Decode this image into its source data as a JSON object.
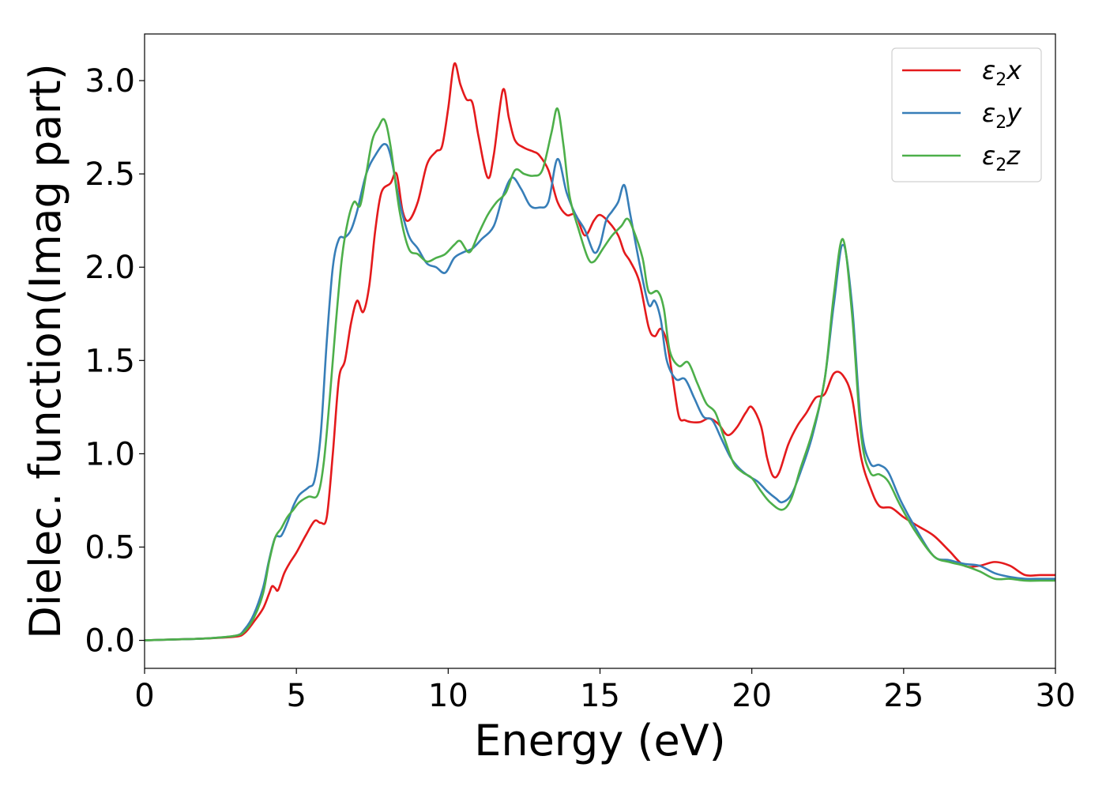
{
  "chart_data": {
    "type": "line",
    "title": "",
    "xlabel": "Energy (eV)",
    "ylabel": "Dielec. function(Imag part)",
    "xlim": [
      0,
      30
    ],
    "ylim": [
      -0.15,
      3.25
    ],
    "xticks": [
      0,
      5,
      10,
      15,
      20,
      25,
      30
    ],
    "yticks": [
      0.0,
      0.5,
      1.0,
      1.5,
      2.0,
      2.5,
      3.0
    ],
    "xtick_labels": [
      "0",
      "5",
      "10",
      "15",
      "20",
      "25",
      "30"
    ],
    "ytick_labels": [
      "0.0",
      "0.5",
      "1.0",
      "1.5",
      "2.0",
      "2.5",
      "3.0"
    ],
    "grid": false,
    "legend_position": "top-right",
    "series": [
      {
        "name": "ε₂x",
        "legend_main": "ε",
        "legend_sub": "2",
        "legend_var": "x",
        "color": "#e41a1c",
        "points": [
          [
            0,
            0.0
          ],
          [
            1,
            0.005
          ],
          [
            2,
            0.01
          ],
          [
            3,
            0.02
          ],
          [
            3.3,
            0.04
          ],
          [
            3.6,
            0.1
          ],
          [
            3.9,
            0.17
          ],
          [
            4.1,
            0.25
          ],
          [
            4.2,
            0.29
          ],
          [
            4.3,
            0.28
          ],
          [
            4.4,
            0.27
          ],
          [
            4.6,
            0.36
          ],
          [
            4.8,
            0.42
          ],
          [
            5.0,
            0.47
          ],
          [
            5.3,
            0.56
          ],
          [
            5.6,
            0.64
          ],
          [
            5.8,
            0.63
          ],
          [
            6.0,
            0.66
          ],
          [
            6.2,
            1.0
          ],
          [
            6.4,
            1.4
          ],
          [
            6.6,
            1.5
          ],
          [
            6.8,
            1.7
          ],
          [
            7.0,
            1.82
          ],
          [
            7.2,
            1.76
          ],
          [
            7.4,
            1.9
          ],
          [
            7.6,
            2.2
          ],
          [
            7.8,
            2.4
          ],
          [
            8.1,
            2.45
          ],
          [
            8.3,
            2.5
          ],
          [
            8.5,
            2.3
          ],
          [
            8.7,
            2.25
          ],
          [
            9.0,
            2.35
          ],
          [
            9.3,
            2.55
          ],
          [
            9.6,
            2.62
          ],
          [
            9.8,
            2.65
          ],
          [
            10.0,
            2.85
          ],
          [
            10.2,
            3.09
          ],
          [
            10.4,
            2.98
          ],
          [
            10.6,
            2.9
          ],
          [
            10.8,
            2.88
          ],
          [
            11.0,
            2.7
          ],
          [
            11.3,
            2.48
          ],
          [
            11.5,
            2.6
          ],
          [
            11.8,
            2.95
          ],
          [
            12.0,
            2.8
          ],
          [
            12.2,
            2.68
          ],
          [
            12.5,
            2.64
          ],
          [
            12.8,
            2.62
          ],
          [
            13.0,
            2.6
          ],
          [
            13.3,
            2.52
          ],
          [
            13.6,
            2.35
          ],
          [
            13.9,
            2.28
          ],
          [
            14.2,
            2.28
          ],
          [
            14.5,
            2.17
          ],
          [
            14.8,
            2.25
          ],
          [
            15.0,
            2.28
          ],
          [
            15.3,
            2.24
          ],
          [
            15.6,
            2.17
          ],
          [
            15.8,
            2.08
          ],
          [
            16.0,
            2.03
          ],
          [
            16.3,
            1.92
          ],
          [
            16.6,
            1.68
          ],
          [
            16.8,
            1.63
          ],
          [
            17.0,
            1.67
          ],
          [
            17.2,
            1.6
          ],
          [
            17.4,
            1.4
          ],
          [
            17.6,
            1.2
          ],
          [
            17.8,
            1.18
          ],
          [
            18.0,
            1.17
          ],
          [
            18.3,
            1.17
          ],
          [
            18.6,
            1.19
          ],
          [
            18.9,
            1.16
          ],
          [
            19.2,
            1.1
          ],
          [
            19.5,
            1.14
          ],
          [
            19.8,
            1.22
          ],
          [
            20.0,
            1.25
          ],
          [
            20.3,
            1.15
          ],
          [
            20.5,
            0.98
          ],
          [
            20.7,
            0.88
          ],
          [
            20.9,
            0.9
          ],
          [
            21.2,
            1.05
          ],
          [
            21.5,
            1.15
          ],
          [
            21.8,
            1.22
          ],
          [
            22.1,
            1.3
          ],
          [
            22.4,
            1.32
          ],
          [
            22.7,
            1.43
          ],
          [
            23.0,
            1.42
          ],
          [
            23.3,
            1.3
          ],
          [
            23.6,
            0.98
          ],
          [
            23.9,
            0.82
          ],
          [
            24.2,
            0.72
          ],
          [
            24.6,
            0.71
          ],
          [
            25.0,
            0.66
          ],
          [
            25.5,
            0.61
          ],
          [
            26.0,
            0.56
          ],
          [
            26.5,
            0.48
          ],
          [
            27.0,
            0.4
          ],
          [
            27.5,
            0.4
          ],
          [
            28.0,
            0.42
          ],
          [
            28.5,
            0.4
          ],
          [
            29.0,
            0.35
          ],
          [
            29.5,
            0.35
          ],
          [
            30.0,
            0.35
          ]
        ]
      },
      {
        "name": "ε₂y",
        "legend_main": "ε",
        "legend_sub": "2",
        "legend_var": "y",
        "color": "#377eb8",
        "points": [
          [
            0,
            0.0
          ],
          [
            1,
            0.005
          ],
          [
            2,
            0.01
          ],
          [
            3,
            0.025
          ],
          [
            3.3,
            0.06
          ],
          [
            3.6,
            0.14
          ],
          [
            3.9,
            0.28
          ],
          [
            4.1,
            0.43
          ],
          [
            4.3,
            0.55
          ],
          [
            4.5,
            0.56
          ],
          [
            4.7,
            0.63
          ],
          [
            4.9,
            0.72
          ],
          [
            5.1,
            0.78
          ],
          [
            5.4,
            0.82
          ],
          [
            5.6,
            0.86
          ],
          [
            5.8,
            1.1
          ],
          [
            6.0,
            1.6
          ],
          [
            6.2,
            2.0
          ],
          [
            6.4,
            2.15
          ],
          [
            6.6,
            2.16
          ],
          [
            6.8,
            2.2
          ],
          [
            7.0,
            2.3
          ],
          [
            7.3,
            2.5
          ],
          [
            7.6,
            2.6
          ],
          [
            7.9,
            2.66
          ],
          [
            8.1,
            2.6
          ],
          [
            8.4,
            2.35
          ],
          [
            8.7,
            2.17
          ],
          [
            9.0,
            2.1
          ],
          [
            9.3,
            2.02
          ],
          [
            9.6,
            2.0
          ],
          [
            9.9,
            1.97
          ],
          [
            10.2,
            2.05
          ],
          [
            10.5,
            2.08
          ],
          [
            10.8,
            2.1
          ],
          [
            11.1,
            2.15
          ],
          [
            11.5,
            2.22
          ],
          [
            11.8,
            2.38
          ],
          [
            12.1,
            2.48
          ],
          [
            12.4,
            2.42
          ],
          [
            12.7,
            2.33
          ],
          [
            13.0,
            2.32
          ],
          [
            13.3,
            2.35
          ],
          [
            13.6,
            2.58
          ],
          [
            13.9,
            2.4
          ],
          [
            14.2,
            2.28
          ],
          [
            14.5,
            2.2
          ],
          [
            14.8,
            2.08
          ],
          [
            15.0,
            2.12
          ],
          [
            15.2,
            2.25
          ],
          [
            15.4,
            2.3
          ],
          [
            15.6,
            2.35
          ],
          [
            15.8,
            2.44
          ],
          [
            16.0,
            2.28
          ],
          [
            16.3,
            2.02
          ],
          [
            16.6,
            1.8
          ],
          [
            16.8,
            1.82
          ],
          [
            17.0,
            1.72
          ],
          [
            17.2,
            1.5
          ],
          [
            17.5,
            1.4
          ],
          [
            17.8,
            1.4
          ],
          [
            18.1,
            1.3
          ],
          [
            18.4,
            1.2
          ],
          [
            18.7,
            1.18
          ],
          [
            19.0,
            1.08
          ],
          [
            19.3,
            0.98
          ],
          [
            19.6,
            0.92
          ],
          [
            19.9,
            0.88
          ],
          [
            20.2,
            0.85
          ],
          [
            20.5,
            0.8
          ],
          [
            20.8,
            0.76
          ],
          [
            21.0,
            0.74
          ],
          [
            21.3,
            0.78
          ],
          [
            21.6,
            0.9
          ],
          [
            22.0,
            1.1
          ],
          [
            22.4,
            1.4
          ],
          [
            22.7,
            1.8
          ],
          [
            23.0,
            2.12
          ],
          [
            23.3,
            1.8
          ],
          [
            23.6,
            1.15
          ],
          [
            23.9,
            0.95
          ],
          [
            24.2,
            0.94
          ],
          [
            24.5,
            0.9
          ],
          [
            24.9,
            0.75
          ],
          [
            25.4,
            0.6
          ],
          [
            26.0,
            0.45
          ],
          [
            26.5,
            0.43
          ],
          [
            27.0,
            0.41
          ],
          [
            27.5,
            0.4
          ],
          [
            28.0,
            0.36
          ],
          [
            28.5,
            0.34
          ],
          [
            29.0,
            0.33
          ],
          [
            29.5,
            0.33
          ],
          [
            30.0,
            0.33
          ]
        ]
      },
      {
        "name": "ε₂z",
        "legend_main": "ε",
        "legend_sub": "2",
        "legend_var": "z",
        "color": "#4daf4a",
        "points": [
          [
            0,
            0.0
          ],
          [
            1,
            0.005
          ],
          [
            2,
            0.01
          ],
          [
            3,
            0.025
          ],
          [
            3.3,
            0.05
          ],
          [
            3.6,
            0.12
          ],
          [
            3.9,
            0.25
          ],
          [
            4.1,
            0.42
          ],
          [
            4.3,
            0.55
          ],
          [
            4.5,
            0.6
          ],
          [
            4.7,
            0.66
          ],
          [
            4.9,
            0.7
          ],
          [
            5.1,
            0.74
          ],
          [
            5.4,
            0.77
          ],
          [
            5.7,
            0.78
          ],
          [
            5.9,
            0.95
          ],
          [
            6.1,
            1.3
          ],
          [
            6.3,
            1.7
          ],
          [
            6.5,
            2.05
          ],
          [
            6.7,
            2.25
          ],
          [
            6.9,
            2.35
          ],
          [
            7.1,
            2.33
          ],
          [
            7.3,
            2.5
          ],
          [
            7.5,
            2.68
          ],
          [
            7.7,
            2.75
          ],
          [
            7.9,
            2.79
          ],
          [
            8.1,
            2.65
          ],
          [
            8.4,
            2.3
          ],
          [
            8.7,
            2.1
          ],
          [
            9.0,
            2.07
          ],
          [
            9.3,
            2.03
          ],
          [
            9.6,
            2.05
          ],
          [
            9.9,
            2.07
          ],
          [
            10.2,
            2.12
          ],
          [
            10.4,
            2.14
          ],
          [
            10.7,
            2.08
          ],
          [
            11.0,
            2.18
          ],
          [
            11.3,
            2.28
          ],
          [
            11.6,
            2.35
          ],
          [
            11.9,
            2.4
          ],
          [
            12.2,
            2.52
          ],
          [
            12.5,
            2.5
          ],
          [
            12.8,
            2.49
          ],
          [
            13.1,
            2.52
          ],
          [
            13.4,
            2.72
          ],
          [
            13.6,
            2.85
          ],
          [
            13.8,
            2.65
          ],
          [
            14.0,
            2.38
          ],
          [
            14.3,
            2.2
          ],
          [
            14.6,
            2.05
          ],
          [
            14.8,
            2.03
          ],
          [
            15.1,
            2.1
          ],
          [
            15.4,
            2.17
          ],
          [
            15.7,
            2.22
          ],
          [
            15.9,
            2.26
          ],
          [
            16.1,
            2.2
          ],
          [
            16.4,
            2.05
          ],
          [
            16.6,
            1.87
          ],
          [
            16.9,
            1.87
          ],
          [
            17.1,
            1.78
          ],
          [
            17.3,
            1.55
          ],
          [
            17.6,
            1.47
          ],
          [
            17.9,
            1.49
          ],
          [
            18.2,
            1.38
          ],
          [
            18.5,
            1.27
          ],
          [
            18.8,
            1.22
          ],
          [
            19.1,
            1.08
          ],
          [
            19.4,
            0.95
          ],
          [
            19.7,
            0.9
          ],
          [
            20.0,
            0.87
          ],
          [
            20.3,
            0.8
          ],
          [
            20.6,
            0.74
          ],
          [
            21.0,
            0.7
          ],
          [
            21.3,
            0.76
          ],
          [
            21.6,
            0.92
          ],
          [
            22.0,
            1.12
          ],
          [
            22.4,
            1.4
          ],
          [
            22.7,
            1.85
          ],
          [
            23.0,
            2.15
          ],
          [
            23.3,
            1.75
          ],
          [
            23.6,
            1.1
          ],
          [
            23.9,
            0.9
          ],
          [
            24.2,
            0.89
          ],
          [
            24.5,
            0.85
          ],
          [
            24.9,
            0.72
          ],
          [
            25.4,
            0.58
          ],
          [
            26.0,
            0.45
          ],
          [
            26.5,
            0.42
          ],
          [
            27.0,
            0.4
          ],
          [
            27.5,
            0.37
          ],
          [
            28.0,
            0.33
          ],
          [
            28.5,
            0.33
          ],
          [
            29.0,
            0.32
          ],
          [
            29.5,
            0.32
          ],
          [
            30.0,
            0.32
          ]
        ]
      }
    ]
  }
}
